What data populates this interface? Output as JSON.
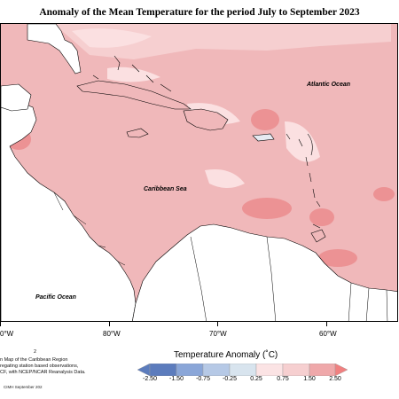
{
  "title": "Anomaly of the Mean Temperature for the period July to September 2023",
  "labels": {
    "atlantic": "Atlantic Ocean",
    "caribbean": "Caribbean Sea",
    "pacific": "Pacific Ocean"
  },
  "longitudes": [
    "0°W",
    "80°W",
    "70°W",
    "60°W"
  ],
  "credit_lines": [
    "2",
    "n Map of the Caribbean Region",
    "regating station based observations,",
    "CF, with NCEP/NCAR Reanalysis Data."
  ],
  "legend": {
    "title": "Temperature Anomaly (˚C)",
    "ticks": [
      "-2.50",
      "-1.50",
      "-0.75",
      "-0.25",
      "0.25",
      "0.75",
      "1.50",
      "2.50"
    ],
    "colors": [
      "#5c7cbd",
      "#8aa6d8",
      "#b6c9e6",
      "#d8e4ee",
      "#fbe3e4",
      "#f6cfd0",
      "#efa8aa",
      "#f08080"
    ]
  },
  "footer": "CIMH September 202",
  "colors": {
    "ocean_base": "#f0b8ba",
    "land": "#ffffff",
    "warm_patch": "#ec9294",
    "near_normal": "#fbe0e1"
  }
}
